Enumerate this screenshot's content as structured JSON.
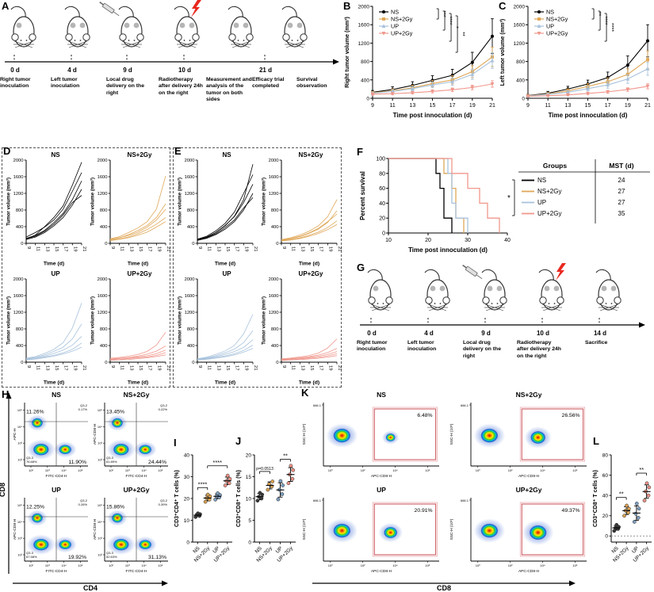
{
  "panel_labels": {
    "A": "A",
    "B": "B",
    "C": "C",
    "D": "D",
    "E": "E",
    "F": "F",
    "G": "G",
    "H": "H",
    "I": "I",
    "J": "J",
    "K": "K",
    "L": "L"
  },
  "groups": [
    "NS",
    "NS+2Gy",
    "UP",
    "UP+2Gy"
  ],
  "colors": {
    "ns": "#000000",
    "ns2gy": "#dfa757",
    "up": "#a8c2dc",
    "up2gy": "#f0978c"
  },
  "dot_colors": [
    "#3a3a3a",
    "#d9a253",
    "#7d9fc0",
    "#ef9287"
  ],
  "panelA": {
    "days": [
      "0 d",
      "4 d",
      "9 d",
      "10 d",
      "21 d"
    ],
    "steps": [
      "Right tumor inoculation",
      "Left tumor inoculation",
      "Local drug delivery on the right",
      "Radiotherapy after delivery 24h on the right",
      "Measurement and analysis of the tumor on both sides",
      "Efficacy trial completed",
      "Survival observation"
    ]
  },
  "panelB": {
    "ylabel": "Right tumor volume (mm³)",
    "xlabel": "Time post innoculation (d)",
    "x": [
      9,
      11,
      13,
      15,
      17,
      19,
      21
    ],
    "ylim": [
      0,
      2000
    ],
    "yticks": [
      0,
      400,
      800,
      1200,
      1600,
      2000
    ],
    "series": [
      {
        "name": "NS",
        "color": "#000000",
        "values": [
          130,
          190,
          280,
          390,
          500,
          780,
          1350
        ],
        "err": [
          40,
          60,
          80,
          100,
          130,
          220,
          380
        ]
      },
      {
        "name": "NS+2Gy",
        "color": "#dfa757",
        "values": [
          120,
          160,
          230,
          320,
          400,
          580,
          900
        ],
        "err": [
          30,
          45,
          55,
          70,
          90,
          130,
          210
        ]
      },
      {
        "name": "UP",
        "color": "#a8c2dc",
        "values": [
          110,
          150,
          210,
          290,
          360,
          520,
          820
        ],
        "err": [
          25,
          35,
          45,
          60,
          80,
          110,
          170
        ]
      },
      {
        "name": "UP+2Gy",
        "color": "#f0978c",
        "values": [
          90,
          100,
          120,
          150,
          185,
          235,
          310
        ],
        "err": [
          20,
          22,
          26,
          32,
          38,
          48,
          70
        ]
      }
    ],
    "sig": [
      "***",
      "****",
      "*",
      "**"
    ]
  },
  "panelC": {
    "ylabel": "Left tumor volume (mm³)",
    "xlabel": "Time post innoculation (d)",
    "x": [
      9,
      11,
      13,
      15,
      17,
      19,
      21
    ],
    "ylim": [
      0,
      2000
    ],
    "yticks": [
      0,
      400,
      800,
      1200,
      1600,
      2000
    ],
    "series": [
      {
        "name": "NS",
        "color": "#000000",
        "values": [
          60,
          110,
          200,
          310,
          450,
          720,
          1250
        ],
        "err": [
          25,
          40,
          60,
          85,
          120,
          200,
          350
        ]
      },
      {
        "name": "NS+2Gy",
        "color": "#dfa757",
        "values": [
          55,
          95,
          160,
          260,
          360,
          520,
          840
        ],
        "err": [
          20,
          30,
          45,
          60,
          85,
          120,
          190
        ]
      },
      {
        "name": "UP",
        "color": "#a8c2dc",
        "values": [
          50,
          85,
          130,
          210,
          290,
          420,
          640
        ],
        "err": [
          18,
          25,
          35,
          50,
          70,
          95,
          140
        ]
      },
      {
        "name": "UP+2Gy",
        "color": "#f0978c",
        "values": [
          45,
          55,
          75,
          105,
          140,
          190,
          260
        ],
        "err": [
          12,
          15,
          18,
          24,
          30,
          38,
          55
        ]
      }
    ],
    "sig": [
      "**",
      "****",
      "****"
    ]
  },
  "panelD": {
    "ylabel": "Tumor volume (mm³)",
    "xlabel": "Time (d)",
    "x": [
      9,
      11,
      13,
      15,
      17,
      19,
      21
    ],
    "ylim": [
      0,
      2000
    ],
    "yticks": [
      0,
      400,
      800,
      1200,
      1600,
      2000
    ],
    "subpanels": [
      {
        "title": "NS",
        "color": "#000000",
        "lines": [
          [
            100,
            200,
            400,
            620,
            900,
            1400,
            1950
          ],
          [
            150,
            260,
            390,
            560,
            820,
            1250,
            1700
          ],
          [
            120,
            190,
            310,
            500,
            720,
            1050,
            1500
          ],
          [
            90,
            150,
            260,
            420,
            620,
            920,
            1300
          ],
          [
            110,
            170,
            290,
            460,
            680,
            980,
            1150
          ]
        ]
      },
      {
        "title": "NS+2Gy",
        "color": "#dfa757",
        "lines": [
          [
            110,
            160,
            260,
            370,
            520,
            820,
            1620
          ],
          [
            90,
            130,
            210,
            310,
            430,
            620,
            950
          ],
          [
            95,
            135,
            190,
            270,
            390,
            560,
            820
          ],
          [
            75,
            105,
            155,
            230,
            330,
            460,
            620
          ],
          [
            65,
            95,
            135,
            195,
            270,
            390,
            520
          ]
        ]
      },
      {
        "title": "UP",
        "color": "#a8c2dc",
        "lines": [
          [
            95,
            135,
            210,
            310,
            470,
            820,
            1420
          ],
          [
            85,
            115,
            175,
            260,
            360,
            560,
            920
          ],
          [
            75,
            105,
            145,
            210,
            290,
            410,
            620
          ],
          [
            65,
            85,
            125,
            165,
            225,
            310,
            460
          ],
          [
            55,
            75,
            105,
            145,
            195,
            265,
            360
          ]
        ]
      },
      {
        "title": "UP+2Gy",
        "color": "#f0978c",
        "lines": [
          [
            95,
            115,
            145,
            185,
            260,
            410,
            720
          ],
          [
            75,
            95,
            115,
            145,
            195,
            265,
            390
          ],
          [
            65,
            85,
            105,
            125,
            155,
            205,
            290
          ],
          [
            55,
            65,
            85,
            105,
            125,
            165,
            230
          ],
          [
            45,
            55,
            65,
            85,
            105,
            135,
            175
          ]
        ]
      }
    ]
  },
  "panelE": {
    "ylabel": "Tumor volume (mm³)",
    "xlabel": "Time (d)",
    "x": [
      9,
      11,
      13,
      15,
      17,
      19,
      21
    ],
    "ylim": [
      0,
      2000
    ],
    "yticks": [
      0,
      400,
      800,
      1200,
      1600,
      2000
    ],
    "subpanels": [
      {
        "title": "NS",
        "color": "#000000",
        "lines": [
          [
            80,
            140,
            260,
            420,
            650,
            1050,
            1900
          ],
          [
            100,
            170,
            300,
            480,
            750,
            1200,
            1650
          ],
          [
            90,
            150,
            260,
            430,
            640,
            980,
            1420
          ],
          [
            70,
            120,
            210,
            340,
            520,
            800,
            1200
          ],
          [
            85,
            135,
            230,
            380,
            560,
            850,
            1100
          ]
        ]
      },
      {
        "title": "NS+2Gy",
        "color": "#dfa757",
        "lines": [
          [
            90,
            130,
            200,
            290,
            420,
            640,
            1050
          ],
          [
            70,
            110,
            160,
            240,
            340,
            500,
            780
          ],
          [
            80,
            115,
            170,
            250,
            360,
            520,
            700
          ],
          [
            60,
            90,
            130,
            195,
            270,
            380,
            540
          ],
          [
            55,
            80,
            115,
            170,
            235,
            330,
            450
          ]
        ]
      },
      {
        "title": "UP",
        "color": "#a8c2dc",
        "lines": [
          [
            85,
            120,
            185,
            270,
            400,
            680,
            1150
          ],
          [
            75,
            105,
            155,
            225,
            315,
            470,
            760
          ],
          [
            65,
            95,
            130,
            185,
            255,
            355,
            540
          ],
          [
            60,
            80,
            115,
            150,
            205,
            280,
            410
          ],
          [
            50,
            70,
            95,
            130,
            175,
            240,
            330
          ]
        ]
      },
      {
        "title": "UP+2Gy",
        "color": "#f0978c",
        "lines": [
          [
            80,
            100,
            125,
            160,
            220,
            340,
            560
          ],
          [
            65,
            85,
            105,
            130,
            170,
            230,
            330
          ],
          [
            60,
            75,
            95,
            115,
            140,
            185,
            255
          ],
          [
            50,
            60,
            78,
            95,
            115,
            150,
            205
          ],
          [
            42,
            52,
            62,
            78,
            95,
            122,
            158
          ]
        ]
      }
    ]
  },
  "panelF": {
    "ylabel": "Percent survival",
    "xlabel": "Time post innoculation (d)",
    "xlim": [
      10,
      40
    ],
    "xticks": [
      10,
      20,
      30,
      40
    ],
    "yticks": [
      0,
      20,
      40,
      60,
      80,
      100
    ],
    "legend_title": "Groups",
    "mst_header": "MST (d)",
    "sig": "*",
    "series": [
      {
        "name": "NS",
        "color": "#000000",
        "mst": "24",
        "steps": [
          [
            10,
            100
          ],
          [
            22,
            100
          ],
          [
            22,
            80
          ],
          [
            23,
            80
          ],
          [
            23,
            60
          ],
          [
            24,
            60
          ],
          [
            24,
            20
          ],
          [
            26,
            20
          ],
          [
            26,
            0
          ]
        ]
      },
      {
        "name": "NS+2Gy",
        "color": "#dfa757",
        "mst": "27",
        "steps": [
          [
            10,
            100
          ],
          [
            24,
            100
          ],
          [
            24,
            80
          ],
          [
            26,
            80
          ],
          [
            26,
            60
          ],
          [
            27,
            60
          ],
          [
            27,
            20
          ],
          [
            29,
            20
          ],
          [
            29,
            0
          ]
        ]
      },
      {
        "name": "UP",
        "color": "#a8c2dc",
        "mst": "27",
        "steps": [
          [
            10,
            100
          ],
          [
            25,
            100
          ],
          [
            25,
            80
          ],
          [
            26,
            80
          ],
          [
            26,
            40
          ],
          [
            27,
            40
          ],
          [
            27,
            20
          ],
          [
            30,
            20
          ],
          [
            30,
            0
          ]
        ]
      },
      {
        "name": "UP+2Gy",
        "color": "#f0978c",
        "mst": "35",
        "steps": [
          [
            10,
            100
          ],
          [
            26,
            100
          ],
          [
            26,
            80
          ],
          [
            30,
            80
          ],
          [
            30,
            60
          ],
          [
            33,
            60
          ],
          [
            33,
            40
          ],
          [
            35,
            40
          ],
          [
            35,
            20
          ],
          [
            38,
            20
          ],
          [
            38,
            0
          ]
        ]
      }
    ]
  },
  "panelG": {
    "days": [
      "0 d",
      "4 d",
      "9 d",
      "10 d",
      "14 d"
    ],
    "steps": [
      "Right tumor inoculation",
      "Left tumor inoculation",
      "Local drug delivery on the right",
      "Radiotherapy after delivery 24h on the right",
      "Sacrifice"
    ]
  },
  "panelH": {
    "axis_y": "CD8",
    "axis_x": "CD4",
    "xticks": [
      "10²",
      "10³",
      "10⁴",
      "10⁵"
    ],
    "yticks": [
      "10²",
      "10³",
      "10⁴",
      "10⁵"
    ],
    "plots": [
      {
        "title": "NS",
        "cd8_pct": "11.26%",
        "cd4_pct": "11.90%",
        "q2": "Q3-2",
        "q2_pct": "0.17%",
        "q3": "Q3-3",
        "q3_pct": "76.68%",
        "ylab": "APC-H",
        "xlab": "FITC-CD4-H"
      },
      {
        "title": "NS+2Gy",
        "cd8_pct": "13.45%",
        "cd4_pct": "24.44%",
        "q2": "Q3-2",
        "q2_pct": "0.22%",
        "q3": "Q3-3",
        "q3_pct": "61.89%",
        "ylab": "APC-CD8-H",
        "xlab": "FITC-CD4-H"
      },
      {
        "title": "UP",
        "cd8_pct": "12.25%",
        "cd4_pct": "19.92%",
        "q2": "Q3-2",
        "q2_pct": "0.26%",
        "q3": "Q3-3",
        "q3_pct": "67.58%",
        "ylab": "APC-CD8-H",
        "xlab": "FITC-CD4-H"
      },
      {
        "title": "UP+2Gy",
        "cd8_pct": "15.86%",
        "cd4_pct": "31.13%",
        "q2": "Q3-2",
        "q2_pct": "0.39%",
        "q3": "Q3-3",
        "q3_pct": "52.63%",
        "ylab": "APC-CD8-H",
        "xlab": "FITC-CD4-H"
      }
    ]
  },
  "panelI": {
    "ylabel": "CD3⁺CD4⁺ T cells (%)",
    "ylim": [
      0,
      40
    ],
    "yticks": [
      0,
      10,
      20,
      30,
      40
    ],
    "points": [
      [
        11.5,
        12,
        12.3,
        12.8,
        13.2
      ],
      [
        18.5,
        19.5,
        20.2,
        21,
        21.8
      ],
      [
        19.5,
        20.5,
        21,
        21.6,
        22.4
      ],
      [
        26,
        27,
        28,
        29,
        30.5
      ]
    ],
    "sig": [
      {
        "label": "****",
        "a": 0,
        "b": 1,
        "y": 25
      },
      {
        "label": "****",
        "a": 1,
        "b": 3,
        "y": 35
      }
    ]
  },
  "panelJ": {
    "ylabel": "CD3⁺CD8⁺ T cells (%)",
    "ylim": [
      0,
      20
    ],
    "yticks": [
      0,
      5,
      10,
      15,
      20
    ],
    "points": [
      [
        9.5,
        10,
        10.4,
        10.9,
        11.3
      ],
      [
        12,
        12.8,
        13.3,
        13.9
      ],
      [
        9.8,
        11,
        12,
        13,
        14
      ],
      [
        13.5,
        14.5,
        15.5,
        16.5,
        17.5
      ]
    ],
    "sig": [
      {
        "label": "p=0.0513",
        "a": 0,
        "b": 1,
        "y": 16.2,
        "small": true
      },
      {
        "label": "**",
        "a": 2,
        "b": 3,
        "y": 19
      }
    ]
  },
  "panelK": {
    "axis_x": "CD8",
    "ylab": "SSC-H (10⁵)",
    "xlab": "APC-CD8-H",
    "ytick_top": "666.1",
    "xticks": [
      "10⁰",
      "10²",
      "10⁴",
      "10⁶"
    ],
    "plots": [
      {
        "title": "NS",
        "pct": "6.48%"
      },
      {
        "title": "NS+2Gy",
        "pct": "26.56%"
      },
      {
        "title": "UP",
        "pct": "20.91%"
      },
      {
        "title": "UP+2Gy",
        "pct": "49.37%"
      }
    ]
  },
  "panelL": {
    "ylabel": "CD3⁺CD8⁺ T cells (%)",
    "ylim": [
      -6,
      80
    ],
    "yticks": [
      0,
      20,
      40,
      60,
      80
    ],
    "dash0": true,
    "points": [
      [
        5,
        7,
        8,
        9,
        11
      ],
      [
        20,
        23,
        25,
        27,
        30
      ],
      [
        14,
        18,
        22,
        27,
        32
      ],
      [
        35,
        40,
        44,
        48,
        52
      ]
    ],
    "sig": [
      {
        "label": "**",
        "a": 0,
        "b": 1,
        "y": 38
      },
      {
        "label": "**",
        "a": 2,
        "b": 3,
        "y": 62
      }
    ]
  }
}
